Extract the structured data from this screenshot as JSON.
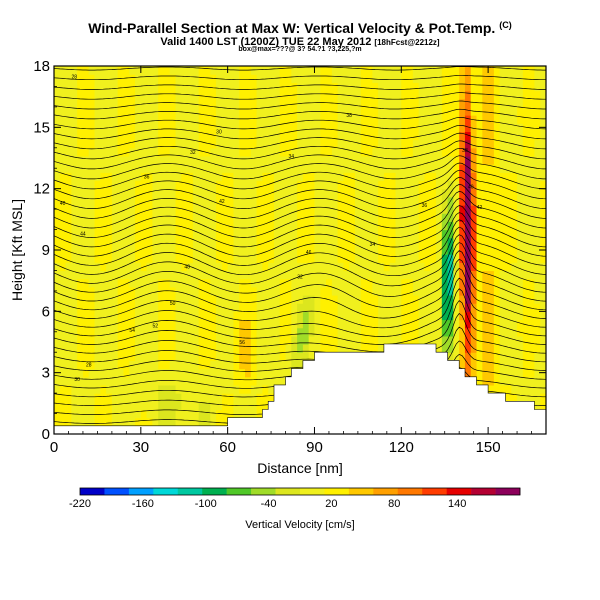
{
  "title": {
    "line1": "Wind-Parallel Section at Max W: Vertical Velocity & Pot.Temp.",
    "line1_mark": "(C)",
    "line2": "Valid 1400 LST (1200Z) TUE 22 May 2012",
    "line2_mark": "[18hFcst@2212z]",
    "line3": "box@max=???@ 3? 54.?1 ?3,225,?m"
  },
  "chart_data": {
    "type": "heatmap",
    "xlabel": "Distance [nm]",
    "ylabel": "Height [Kft MSL]",
    "xlim": [
      0,
      170
    ],
    "ylim": [
      0,
      18
    ],
    "xticks": [
      0,
      30,
      60,
      90,
      120,
      150
    ],
    "yticks": [
      0,
      3,
      6,
      9,
      12,
      15,
      18
    ],
    "colorbar": {
      "label": "Vertical Velocity [cm/s]",
      "ticks": [
        -220,
        -160,
        -100,
        -40,
        20,
        80,
        140
      ],
      "range": [
        -220,
        200
      ],
      "colors": [
        "#0000c8",
        "#0050ff",
        "#00a0ff",
        "#00d8d8",
        "#00c8a0",
        "#00b050",
        "#50c828",
        "#a0dc28",
        "#dce61e",
        "#f0f01e",
        "#fff000",
        "#ffc800",
        "#ffa000",
        "#ff7800",
        "#ff3c00",
        "#e60000",
        "#b40032",
        "#8c005a"
      ]
    },
    "updraft_max_cm_s": 200,
    "downdraft_min_cm_s": -100,
    "theta_contour_labels_c": [
      28,
      30,
      32,
      34,
      36,
      38,
      40,
      42,
      44,
      46,
      48,
      50,
      52,
      54,
      56
    ],
    "terrain": {
      "x": [
        0,
        10,
        15,
        20,
        30,
        45,
        60,
        70,
        73,
        76,
        80,
        84,
        88,
        92,
        95,
        100,
        110,
        115,
        120,
        125,
        130,
        133,
        137,
        140,
        143,
        147,
        150,
        155,
        160,
        165,
        170
      ],
      "z": [
        0.2,
        0.3,
        0.5,
        0.4,
        0.4,
        0.5,
        0.6,
        0.9,
        1.4,
        2.2,
        2.8,
        3.3,
        3.7,
        3.9,
        4.1,
        4.1,
        4.1,
        4.3,
        4.5,
        4.3,
        4.2,
        3.9,
        3.5,
        3.2,
        2.8,
        2.4,
        2.1,
        1.8,
        1.6,
        1.4,
        1.2
      ]
    }
  }
}
